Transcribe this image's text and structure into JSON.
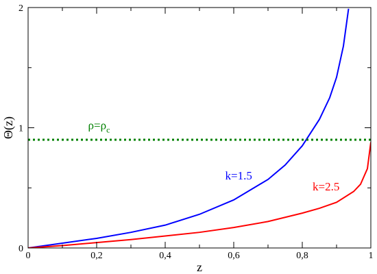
{
  "chart_data": {
    "type": "line",
    "xlabel": "z",
    "ylabel": "Θ(z)",
    "xlim": [
      0,
      1
    ],
    "ylim": [
      0,
      2
    ],
    "grid": false,
    "x_ticks": [
      0,
      0.2,
      0.4,
      0.6,
      0.8,
      1
    ],
    "x_tick_labels": [
      "0",
      "0,2",
      "0,4",
      "0,6",
      "0,8",
      "1"
    ],
    "y_ticks": [
      0,
      1,
      2
    ],
    "y_tick_labels": [
      "0",
      "1",
      "2"
    ],
    "series": [
      {
        "name": "k=1.5",
        "color": "#0000ff",
        "style": "solid",
        "x": [
          0,
          0.1,
          0.2,
          0.3,
          0.4,
          0.5,
          0.6,
          0.7,
          0.75,
          0.8,
          0.85,
          0.88,
          0.9,
          0.92,
          0.935
        ],
        "y": [
          0,
          0.04,
          0.08,
          0.13,
          0.19,
          0.28,
          0.4,
          0.57,
          0.69,
          0.85,
          1.07,
          1.25,
          1.42,
          1.68,
          1.99
        ]
      },
      {
        "name": "k=2.5",
        "color": "#ff0000",
        "style": "solid",
        "x": [
          0,
          0.1,
          0.2,
          0.3,
          0.4,
          0.5,
          0.6,
          0.7,
          0.8,
          0.85,
          0.9,
          0.95,
          0.97,
          0.99,
          1.0
        ],
        "y": [
          0,
          0.02,
          0.045,
          0.07,
          0.1,
          0.13,
          0.17,
          0.22,
          0.29,
          0.33,
          0.38,
          0.47,
          0.53,
          0.66,
          0.88
        ]
      },
      {
        "name": "ρ=ρc",
        "color": "#008000",
        "style": "dotted",
        "x": [
          0,
          1
        ],
        "y": [
          0.9,
          0.9
        ]
      }
    ],
    "annotations": [
      {
        "text": "k=1.5",
        "x": 0.575,
        "y": 0.57,
        "color": "#0000ff"
      },
      {
        "text": "k=2.5",
        "x": 0.83,
        "y": 0.48,
        "color": "#ff0000"
      },
      {
        "text_main": "ρ=ρ",
        "text_sub": "c",
        "x": 0.175,
        "y": 0.99,
        "color": "#008000"
      }
    ]
  }
}
